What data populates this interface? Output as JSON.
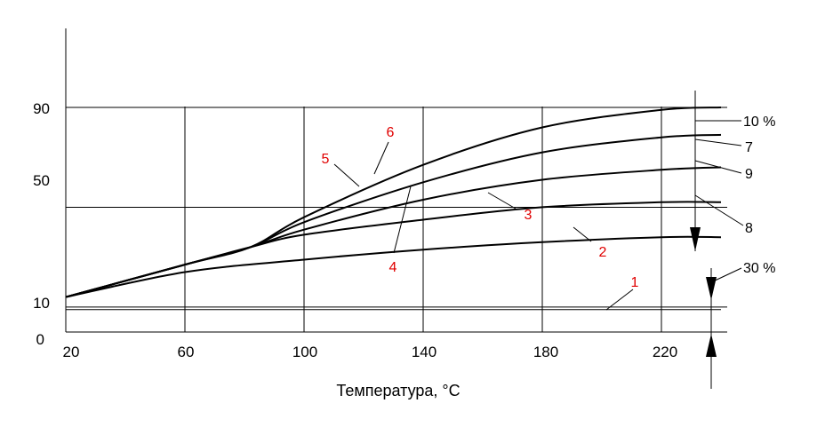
{
  "chart_data": {
    "type": "line",
    "title": "",
    "xlabel": "Температура, °C",
    "ylabel": "",
    "xlim": [
      20,
      240
    ],
    "ylim": [
      0,
      120
    ],
    "x_ticks": [
      "20",
      "60",
      "100",
      "140",
      "180",
      "220"
    ],
    "y_ticks": [
      "0",
      "10",
      "50",
      "90"
    ],
    "grid": true,
    "series": [
      {
        "name": "1",
        "x": [
          20,
          240
        ],
        "y": [
          9,
          9
        ]
      },
      {
        "name": "2",
        "x": [
          20,
          60,
          100,
          140,
          180,
          220,
          240
        ],
        "y": [
          14,
          24,
          29,
          33,
          36,
          38,
          38
        ]
      },
      {
        "name": "3",
        "x": [
          20,
          60,
          82,
          100,
          140,
          180,
          220,
          240
        ],
        "y": [
          14,
          27,
          34,
          39,
          45,
          50,
          52,
          52
        ]
      },
      {
        "name": "4",
        "x": [
          20,
          60,
          82,
          100,
          140,
          180,
          220,
          240
        ],
        "y": [
          14,
          27,
          34,
          41,
          53,
          61,
          65,
          66
        ]
      },
      {
        "name": "5",
        "x": [
          20,
          60,
          82,
          100,
          140,
          180,
          220,
          240
        ],
        "y": [
          14,
          27,
          34,
          44,
          60,
          72,
          78,
          79
        ]
      },
      {
        "name": "6",
        "x": [
          20,
          60,
          82,
          100,
          140,
          180,
          220,
          240
        ],
        "y": [
          14,
          27,
          34,
          46,
          67,
          82,
          89,
          90
        ]
      }
    ],
    "curve_labels": [
      "1",
      "2",
      "3",
      "4",
      "5",
      "6"
    ],
    "side_labels": [
      "10 %",
      "7",
      "9",
      "8",
      "30 %"
    ],
    "colors": {
      "curves": "#000000",
      "curve_numbers": "#e00000"
    }
  }
}
